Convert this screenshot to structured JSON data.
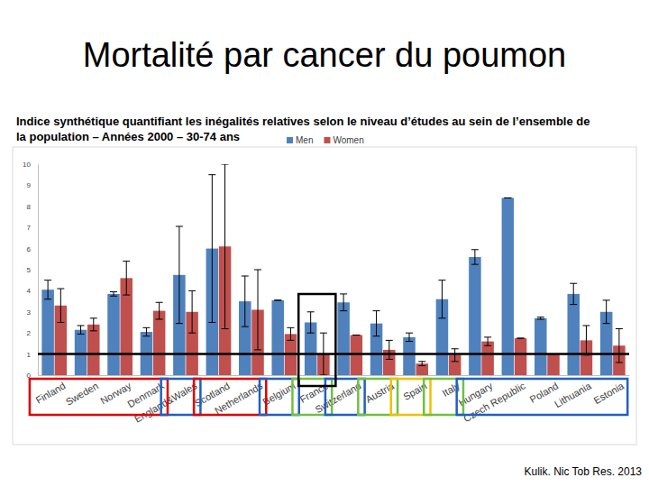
{
  "chart_data": {
    "type": "bar",
    "title": "Mortalité par cancer du poumon",
    "subtitle": "Indice synthétique quantifiant les inégalités relatives selon le niveau d’études au sein de l’ensemble de la population – Années 2000 – 30-74 ans",
    "source": "Kulik. Nic Tob Res. 2013",
    "categories": [
      "Finland",
      "Sweden",
      "Norway",
      "Denmark",
      "England&Wales",
      "Scotland",
      "Netherlands",
      "Belgium",
      "France",
      "Switzerland",
      "Austria",
      "Spain",
      "Italy",
      "Hungary",
      "Czech Republic",
      "Poland",
      "Lithuania",
      "Estonia"
    ],
    "series": [
      {
        "name": "Men",
        "color": "#4f81bd",
        "values": [
          4.05,
          2.15,
          3.85,
          2.05,
          4.75,
          6.0,
          3.5,
          3.55,
          2.5,
          3.45,
          2.45,
          1.8,
          3.6,
          5.6,
          8.4,
          2.7,
          3.85,
          3.0
        ],
        "errors": [
          0.45,
          0.2,
          0.1,
          0.2,
          2.3,
          3.5,
          1.2,
          0.0,
          0.5,
          0.4,
          0.6,
          0.2,
          0.9,
          0.35,
          0.0,
          0.05,
          0.5,
          0.55
        ]
      },
      {
        "name": "Women",
        "color": "#c0504d",
        "values": [
          3.3,
          2.4,
          4.6,
          3.05,
          3.0,
          6.1,
          3.1,
          1.95,
          1.0,
          1.9,
          1.2,
          0.55,
          0.95,
          1.6,
          1.75,
          1.0,
          1.65,
          1.4
        ],
        "errors": [
          0.8,
          0.3,
          0.8,
          0.4,
          1.0,
          3.9,
          1.9,
          0.3,
          1.0,
          0.0,
          0.45,
          0.1,
          0.3,
          0.2,
          0.0,
          0.0,
          0.7,
          0.8
        ]
      }
    ],
    "reference_line": 1,
    "ylim": [
      0,
      10
    ],
    "yticks": [
      0,
      1,
      2,
      3,
      4,
      5,
      6,
      7,
      8,
      9,
      10
    ],
    "legend": "top",
    "grid": false
  }
}
